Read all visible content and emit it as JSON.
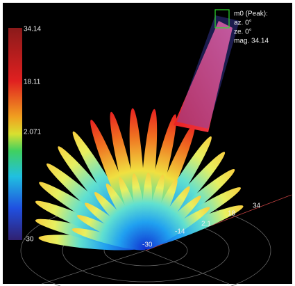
{
  "colorbar": {
    "labels": [
      "34.14",
      "18.11",
      "2.071",
      "-30"
    ]
  },
  "peak": {
    "title": "m0 (Peak):",
    "az": "az. 0°",
    "ze": "ze. 0°",
    "mag": "mag. 34.14"
  },
  "polar_labels": [
    "-30",
    "-14",
    "2.1",
    "18",
    "34"
  ]
}
